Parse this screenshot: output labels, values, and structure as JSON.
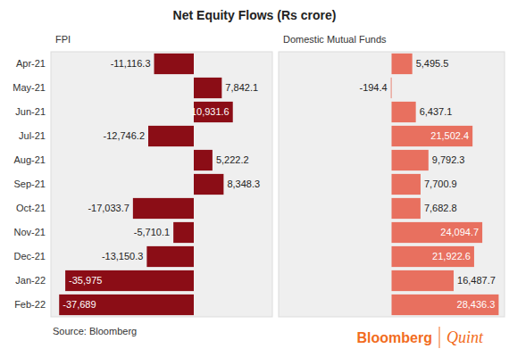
{
  "chart_data": [
    {
      "type": "bar",
      "title": "Net Equity Flows (Rs crore)",
      "subtitle": "FPI",
      "orientation": "horizontal",
      "data_labels": true,
      "tick_labels": "y",
      "categories": [
        "Apr-21",
        "May-21",
        "Jun-21",
        "Jul-21",
        "Aug-21",
        "Sep-21",
        "Oct-21",
        "Nov-21",
        "Dec-21",
        "Jan-22",
        "Feb-22"
      ],
      "values": [
        -11116.3,
        7842.1,
        10931.6,
        -12746.2,
        5222.2,
        8348.3,
        -17033.7,
        -5710.1,
        -13150.3,
        -35975,
        -37689
      ],
      "value_labels": [
        "-11,116.3",
        "7,842.1",
        "10,931.6",
        "-12,746.2",
        "5,222.2",
        "8,348.3",
        "-17,033.7",
        "-5,710.1",
        "-13,150.3",
        "-35,975",
        "-37,689"
      ],
      "color": "#8b0d16",
      "xlim": [
        -40000,
        22000
      ],
      "source": "Source: Bloomberg"
    },
    {
      "type": "bar",
      "subtitle": "Domestic Mutual Funds",
      "orientation": "horizontal",
      "data_labels": true,
      "tick_labels": false,
      "categories": [
        "Apr-21",
        "May-21",
        "Jun-21",
        "Jul-21",
        "Aug-21",
        "Sep-21",
        "Oct-21",
        "Nov-21",
        "Dec-21",
        "Jan-22",
        "Feb-22"
      ],
      "values": [
        5495.5,
        -194.4,
        6437.1,
        21502.4,
        9792.3,
        7700.9,
        7682.8,
        24094.7,
        21922.6,
        16487.7,
        28436.3
      ],
      "value_labels": [
        "5,495.5",
        "-194.4",
        "6,437.1",
        "21,502.4",
        "9,792.3",
        "7,700.9",
        "7,682.8",
        "24,094.7",
        "21,922.6",
        "16,487.7",
        "28,436.3"
      ],
      "color": "#e8705f",
      "xlim": [
        -30000,
        30000
      ],
      "annotations": [
        "Bloomberg",
        "Quint"
      ]
    }
  ]
}
